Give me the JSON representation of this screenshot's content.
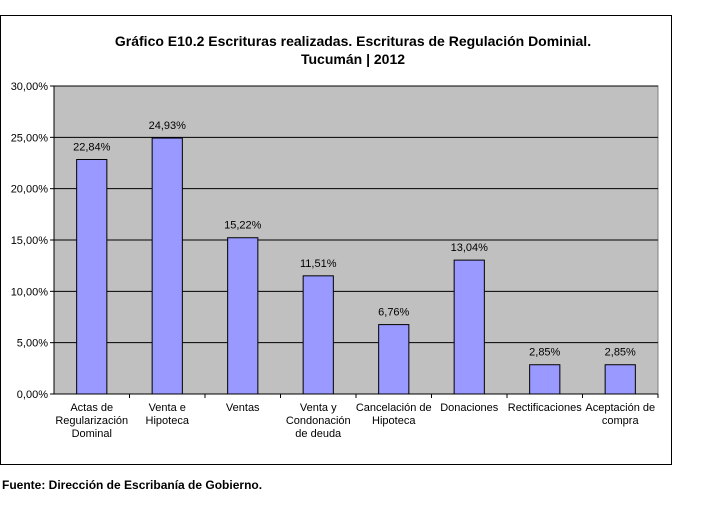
{
  "chart_data": {
    "type": "bar",
    "title": "Gráfico E10.2 Escrituras realizadas. Escrituras de Regulación Dominial.",
    "subtitle": "Tucumán | 2012",
    "categories": [
      [
        "Actas de",
        "Regularización",
        "Dominal"
      ],
      [
        "Venta e",
        "Hipoteca"
      ],
      [
        "Ventas"
      ],
      [
        "Venta y",
        "Condonación",
        "de deuda"
      ],
      [
        "Cancelación de",
        "Hipoteca"
      ],
      [
        "Donaciones"
      ],
      [
        "Rectificaciones"
      ],
      [
        "Aceptación de",
        "compra"
      ]
    ],
    "values": [
      22.84,
      24.93,
      15.22,
      11.51,
      6.76,
      13.04,
      2.85,
      2.85
    ],
    "data_labels": [
      "22,84%",
      "24,93%",
      "15,22%",
      "11,51%",
      "6,76%",
      "13,04%",
      "2,85%",
      "2,85%"
    ],
    "y_ticks": [
      "0,00%",
      "5,00%",
      "10,00%",
      "15,00%",
      "20,00%",
      "25,00%",
      "30,00%"
    ],
    "ylim": [
      0,
      30
    ],
    "ytick_step": 5,
    "grid": true,
    "legend": "none",
    "colors": {
      "bar_fill": "#9999ff",
      "bar_stroke": "#000000",
      "plot_background": "#c0c0c0",
      "gridline": "#000000"
    }
  },
  "footer": {
    "source": "Fuente: Dirección de Escribanía de Gobierno."
  }
}
